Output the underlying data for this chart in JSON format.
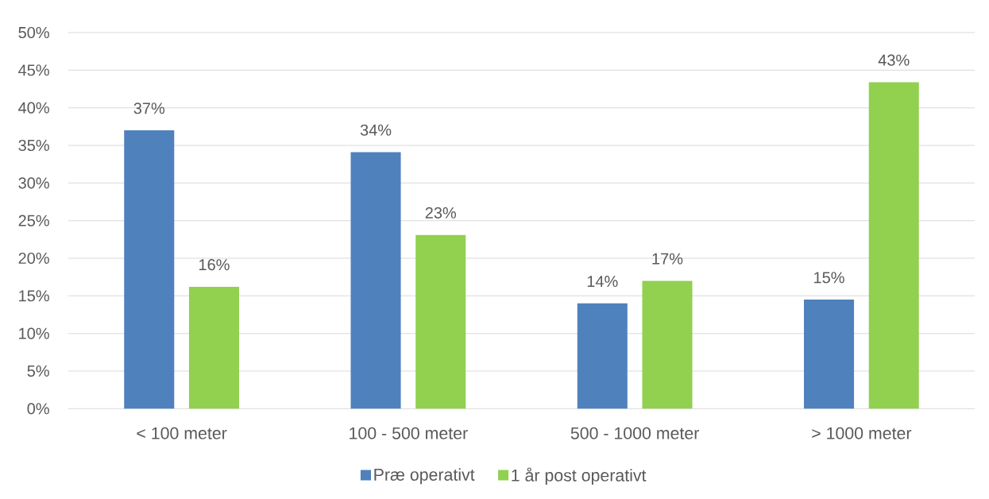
{
  "chart_data": {
    "type": "bar",
    "categories": [
      "< 100 meter",
      "100 - 500 meter",
      "500 - 1000 meter",
      "> 1000 meter"
    ],
    "series": [
      {
        "name": "Præ operativt",
        "color": "#4f81bd",
        "values": [
          37.0,
          34.1,
          14.0,
          14.5
        ],
        "value_labels": [
          "37%",
          "34%",
          "14%",
          "15%"
        ]
      },
      {
        "name": "1 år post operativt",
        "color": "#92d050",
        "values": [
          16.2,
          23.1,
          17.0,
          43.4
        ],
        "value_labels": [
          "16%",
          "23%",
          "17%",
          "43%"
        ]
      }
    ],
    "ylim": [
      0,
      50
    ],
    "yticks": [
      {
        "value": 0,
        "label": "0%"
      },
      {
        "value": 5,
        "label": "5%"
      },
      {
        "value": 10,
        "label": "10%"
      },
      {
        "value": 15,
        "label": "15%"
      },
      {
        "value": 20,
        "label": "20%"
      },
      {
        "value": 25,
        "label": "25%"
      },
      {
        "value": 30,
        "label": "30%"
      },
      {
        "value": 35,
        "label": "35%"
      },
      {
        "value": 40,
        "label": "40%"
      },
      {
        "value": 45,
        "label": "45%"
      },
      {
        "value": 50,
        "label": "50%"
      }
    ],
    "grid": "y",
    "legend": "bottom"
  }
}
